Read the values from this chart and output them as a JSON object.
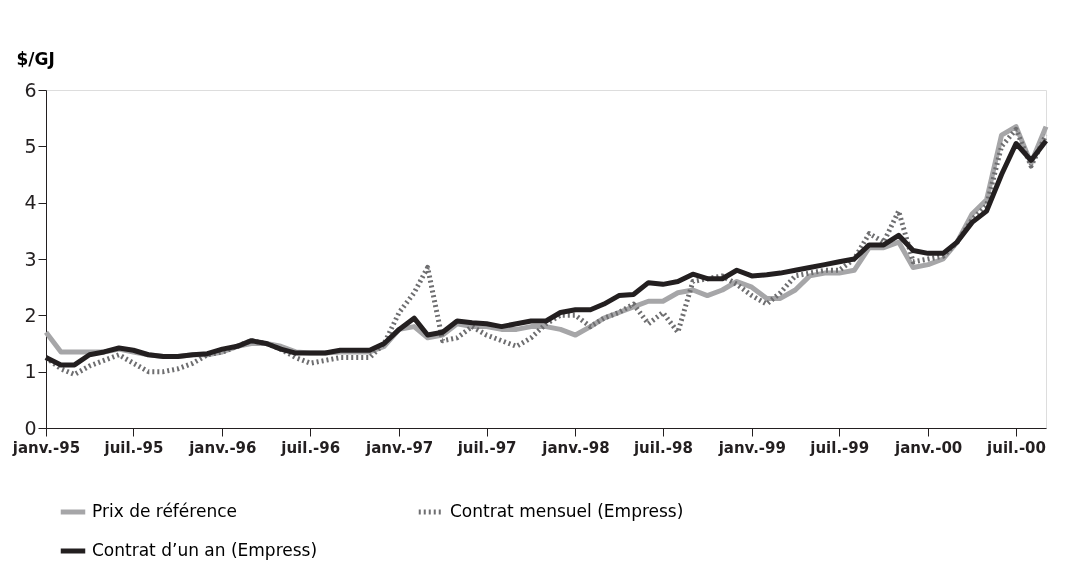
{
  "chart_data": {
    "type": "line",
    "ylabel": "$/GJ",
    "x": [
      "1995-01",
      "1995-02",
      "1995-03",
      "1995-04",
      "1995-05",
      "1995-06",
      "1995-07",
      "1995-08",
      "1995-09",
      "1995-10",
      "1995-11",
      "1995-12",
      "1996-01",
      "1996-02",
      "1996-03",
      "1996-04",
      "1996-05",
      "1996-06",
      "1996-07",
      "1996-08",
      "1996-09",
      "1996-10",
      "1996-11",
      "1996-12",
      "1997-01",
      "1997-02",
      "1997-03",
      "1997-04",
      "1997-05",
      "1997-06",
      "1997-07",
      "1997-08",
      "1997-09",
      "1997-10",
      "1997-11",
      "1997-12",
      "1998-01",
      "1998-02",
      "1998-03",
      "1998-04",
      "1998-05",
      "1998-06",
      "1998-07",
      "1998-08",
      "1998-09",
      "1998-10",
      "1998-11",
      "1998-12",
      "1999-01",
      "1999-02",
      "1999-03",
      "1999-04",
      "1999-05",
      "1999-06",
      "1999-07",
      "1999-08",
      "1999-09",
      "1999-10",
      "1999-11",
      "1999-12",
      "2000-01",
      "2000-02",
      "2000-03",
      "2000-04",
      "2000-05",
      "2000-06",
      "2000-07",
      "2000-08",
      "2000-09"
    ],
    "series": [
      {
        "name": "Prix de référence",
        "color": "#a6a6a8",
        "line_style": "solid",
        "values": [
          1.7,
          1.35,
          1.35,
          1.35,
          1.35,
          1.4,
          1.35,
          1.3,
          1.27,
          1.27,
          1.3,
          1.3,
          1.35,
          1.45,
          1.5,
          1.5,
          1.45,
          1.35,
          1.33,
          1.33,
          1.35,
          1.35,
          1.35,
          1.45,
          1.75,
          1.8,
          1.6,
          1.65,
          1.85,
          1.8,
          1.8,
          1.75,
          1.75,
          1.8,
          1.8,
          1.75,
          1.65,
          1.8,
          1.95,
          2.05,
          2.15,
          2.25,
          2.25,
          2.4,
          2.45,
          2.35,
          2.45,
          2.6,
          2.5,
          2.3,
          2.3,
          2.45,
          2.7,
          2.75,
          2.75,
          2.8,
          3.2,
          3.2,
          3.3,
          2.85,
          2.9,
          3.0,
          3.3,
          3.8,
          4.05,
          5.2,
          5.35,
          4.7,
          5.35
        ]
      },
      {
        "name": "Contrat mensuel (Empress)",
        "color": "#6e6e70",
        "line_style": "dotted",
        "values": [
          1.25,
          1.05,
          0.95,
          1.1,
          1.2,
          1.3,
          1.15,
          1.0,
          1.0,
          1.05,
          1.15,
          1.3,
          1.35,
          1.45,
          1.55,
          1.5,
          1.4,
          1.25,
          1.15,
          1.2,
          1.25,
          1.25,
          1.25,
          1.5,
          2.05,
          2.4,
          2.85,
          1.55,
          1.6,
          1.8,
          1.65,
          1.55,
          1.45,
          1.6,
          1.85,
          2.0,
          2.0,
          1.8,
          1.95,
          2.05,
          2.2,
          1.85,
          2.05,
          1.7,
          2.6,
          2.65,
          2.7,
          2.55,
          2.35,
          2.2,
          2.4,
          2.7,
          2.75,
          2.8,
          2.8,
          3.0,
          3.45,
          3.3,
          3.85,
          2.95,
          3.0,
          3.05,
          3.3,
          3.7,
          3.95,
          5.0,
          5.3,
          4.65,
          5.2
        ]
      },
      {
        "name": "Contrat d’un an (Empress)",
        "color": "#231f20",
        "line_style": "solid",
        "values": [
          1.25,
          1.12,
          1.12,
          1.3,
          1.35,
          1.42,
          1.38,
          1.3,
          1.27,
          1.27,
          1.3,
          1.32,
          1.4,
          1.45,
          1.55,
          1.5,
          1.4,
          1.33,
          1.33,
          1.33,
          1.38,
          1.38,
          1.38,
          1.5,
          1.75,
          1.95,
          1.65,
          1.7,
          1.9,
          1.87,
          1.85,
          1.8,
          1.85,
          1.9,
          1.9,
          2.05,
          2.1,
          2.1,
          2.2,
          2.35,
          2.37,
          2.58,
          2.55,
          2.6,
          2.73,
          2.65,
          2.65,
          2.8,
          2.7,
          2.72,
          2.75,
          2.8,
          2.85,
          2.9,
          2.95,
          3.0,
          3.25,
          3.25,
          3.42,
          3.15,
          3.1,
          3.1,
          3.3,
          3.65,
          3.85,
          4.5,
          5.05,
          4.75,
          5.1
        ]
      }
    ],
    "xlim": [
      "1995-01",
      "2000-09"
    ],
    "xticks": [
      {
        "value": "1995-01",
        "label": "janv.-95"
      },
      {
        "value": "1995-07",
        "label": "juil.-95"
      },
      {
        "value": "1996-01",
        "label": "janv.-96"
      },
      {
        "value": "1996-07",
        "label": "juil.-96"
      },
      {
        "value": "1997-01",
        "label": "janv.-97"
      },
      {
        "value": "1997-07",
        "label": "juil.-97"
      },
      {
        "value": "1998-01",
        "label": "janv.-98"
      },
      {
        "value": "1998-07",
        "label": "juil.-98"
      },
      {
        "value": "1999-01",
        "label": "janv.-99"
      },
      {
        "value": "1999-07",
        "label": "juil.-99"
      },
      {
        "value": "2000-01",
        "label": "janv.-00"
      },
      {
        "value": "2000-07",
        "label": "juil.-00"
      }
    ],
    "ylim": [
      0,
      6
    ],
    "yticks": [
      0,
      1,
      2,
      3,
      4,
      5,
      6
    ],
    "grid": false,
    "legend": "bottom"
  }
}
